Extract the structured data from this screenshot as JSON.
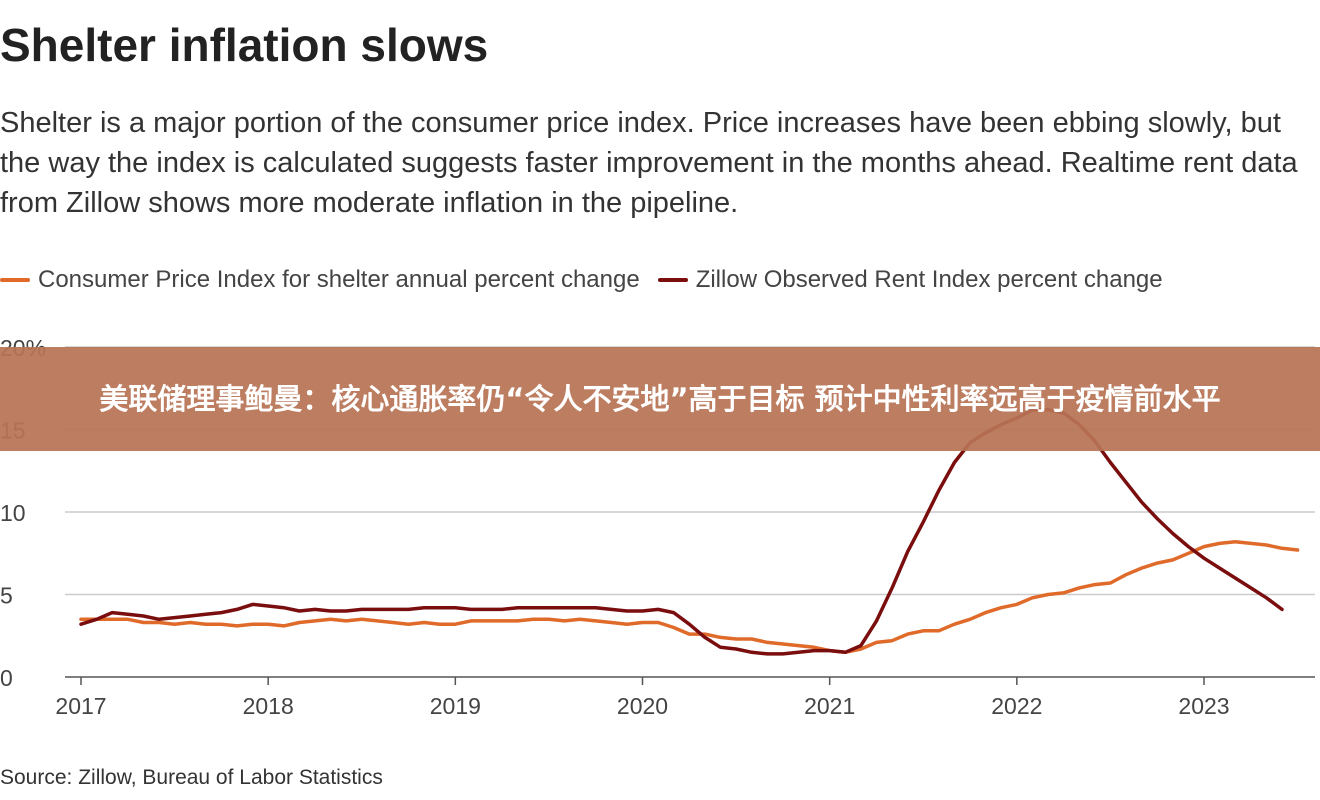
{
  "banner": {
    "text": "美联储理事鲍曼：核心通胀率仍“令人不安地”高于目标 预计中性利率远高于疫情前水平"
  },
  "colors": {
    "cpi": "#e06a2a",
    "zillow": "#7a0e0e",
    "grid": "#cccccc",
    "axis": "#555555",
    "banner_bg": "#b77354"
  },
  "source": "Source: Zillow, Bureau of Labor Statistics",
  "chart_data": {
    "type": "line",
    "title": "Shelter inflation slows",
    "subtitle": "Shelter is a major portion of the consumer price index. Price increases have been ebbing slowly, but the way the index is calculated suggests faster improvement in the months ahead. Realtime rent data from Zillow shows more moderate inflation in the pipeline.",
    "xlabel": "",
    "ylabel": "",
    "x_ticks": [
      "2017",
      "2018",
      "2019",
      "2020",
      "2021",
      "2022",
      "2023"
    ],
    "y_ticks": [
      "0",
      "5",
      "10",
      "15",
      "20%"
    ],
    "ylim": [
      0,
      20
    ],
    "xlim": [
      "2017-01",
      "2023-07"
    ],
    "grid": true,
    "legend_position": "top-left",
    "series": [
      {
        "name": "Consumer Price Index for shelter annual percent change",
        "color_key": "cpi",
        "points": [
          [
            "2017-01",
            3.5
          ],
          [
            "2017-02",
            3.5
          ],
          [
            "2017-03",
            3.5
          ],
          [
            "2017-04",
            3.5
          ],
          [
            "2017-05",
            3.3
          ],
          [
            "2017-06",
            3.3
          ],
          [
            "2017-07",
            3.2
          ],
          [
            "2017-08",
            3.3
          ],
          [
            "2017-09",
            3.2
          ],
          [
            "2017-10",
            3.2
          ],
          [
            "2017-11",
            3.1
          ],
          [
            "2017-12",
            3.2
          ],
          [
            "2018-01",
            3.2
          ],
          [
            "2018-02",
            3.1
          ],
          [
            "2018-03",
            3.3
          ],
          [
            "2018-04",
            3.4
          ],
          [
            "2018-05",
            3.5
          ],
          [
            "2018-06",
            3.4
          ],
          [
            "2018-07",
            3.5
          ],
          [
            "2018-08",
            3.4
          ],
          [
            "2018-09",
            3.3
          ],
          [
            "2018-10",
            3.2
          ],
          [
            "2018-11",
            3.3
          ],
          [
            "2018-12",
            3.2
          ],
          [
            "2019-01",
            3.2
          ],
          [
            "2019-02",
            3.4
          ],
          [
            "2019-03",
            3.4
          ],
          [
            "2019-04",
            3.4
          ],
          [
            "2019-05",
            3.4
          ],
          [
            "2019-06",
            3.5
          ],
          [
            "2019-07",
            3.5
          ],
          [
            "2019-08",
            3.4
          ],
          [
            "2019-09",
            3.5
          ],
          [
            "2019-10",
            3.4
          ],
          [
            "2019-11",
            3.3
          ],
          [
            "2019-12",
            3.2
          ],
          [
            "2020-01",
            3.3
          ],
          [
            "2020-02",
            3.3
          ],
          [
            "2020-03",
            3.0
          ],
          [
            "2020-04",
            2.6
          ],
          [
            "2020-05",
            2.6
          ],
          [
            "2020-06",
            2.4
          ],
          [
            "2020-07",
            2.3
          ],
          [
            "2020-08",
            2.3
          ],
          [
            "2020-09",
            2.1
          ],
          [
            "2020-10",
            2.0
          ],
          [
            "2020-11",
            1.9
          ],
          [
            "2020-12",
            1.8
          ],
          [
            "2021-01",
            1.6
          ],
          [
            "2021-02",
            1.5
          ],
          [
            "2021-03",
            1.7
          ],
          [
            "2021-04",
            2.1
          ],
          [
            "2021-05",
            2.2
          ],
          [
            "2021-06",
            2.6
          ],
          [
            "2021-07",
            2.8
          ],
          [
            "2021-08",
            2.8
          ],
          [
            "2021-09",
            3.2
          ],
          [
            "2021-10",
            3.5
          ],
          [
            "2021-11",
            3.9
          ],
          [
            "2021-12",
            4.2
          ],
          [
            "2022-01",
            4.4
          ],
          [
            "2022-02",
            4.8
          ],
          [
            "2022-03",
            5.0
          ],
          [
            "2022-04",
            5.1
          ],
          [
            "2022-05",
            5.4
          ],
          [
            "2022-06",
            5.6
          ],
          [
            "2022-07",
            5.7
          ],
          [
            "2022-08",
            6.2
          ],
          [
            "2022-09",
            6.6
          ],
          [
            "2022-10",
            6.9
          ],
          [
            "2022-11",
            7.1
          ],
          [
            "2022-12",
            7.5
          ],
          [
            "2023-01",
            7.9
          ],
          [
            "2023-02",
            8.1
          ],
          [
            "2023-03",
            8.2
          ],
          [
            "2023-04",
            8.1
          ],
          [
            "2023-05",
            8.0
          ],
          [
            "2023-06",
            7.8
          ],
          [
            "2023-07",
            7.7
          ]
        ]
      },
      {
        "name": "Zillow Observed Rent Index percent change",
        "color_key": "zillow",
        "points": [
          [
            "2017-01",
            3.2
          ],
          [
            "2017-02",
            3.5
          ],
          [
            "2017-03",
            3.9
          ],
          [
            "2017-04",
            3.8
          ],
          [
            "2017-05",
            3.7
          ],
          [
            "2017-06",
            3.5
          ],
          [
            "2017-07",
            3.6
          ],
          [
            "2017-08",
            3.7
          ],
          [
            "2017-09",
            3.8
          ],
          [
            "2017-10",
            3.9
          ],
          [
            "2017-11",
            4.1
          ],
          [
            "2017-12",
            4.4
          ],
          [
            "2018-01",
            4.3
          ],
          [
            "2018-02",
            4.2
          ],
          [
            "2018-03",
            4.0
          ],
          [
            "2018-04",
            4.1
          ],
          [
            "2018-05",
            4.0
          ],
          [
            "2018-06",
            4.0
          ],
          [
            "2018-07",
            4.1
          ],
          [
            "2018-08",
            4.1
          ],
          [
            "2018-09",
            4.1
          ],
          [
            "2018-10",
            4.1
          ],
          [
            "2018-11",
            4.2
          ],
          [
            "2018-12",
            4.2
          ],
          [
            "2019-01",
            4.2
          ],
          [
            "2019-02",
            4.1
          ],
          [
            "2019-03",
            4.1
          ],
          [
            "2019-04",
            4.1
          ],
          [
            "2019-05",
            4.2
          ],
          [
            "2019-06",
            4.2
          ],
          [
            "2019-07",
            4.2
          ],
          [
            "2019-08",
            4.2
          ],
          [
            "2019-09",
            4.2
          ],
          [
            "2019-10",
            4.2
          ],
          [
            "2019-11",
            4.1
          ],
          [
            "2019-12",
            4.0
          ],
          [
            "2020-01",
            4.0
          ],
          [
            "2020-02",
            4.1
          ],
          [
            "2020-03",
            3.9
          ],
          [
            "2020-04",
            3.2
          ],
          [
            "2020-05",
            2.4
          ],
          [
            "2020-06",
            1.8
          ],
          [
            "2020-07",
            1.7
          ],
          [
            "2020-08",
            1.5
          ],
          [
            "2020-09",
            1.4
          ],
          [
            "2020-10",
            1.4
          ],
          [
            "2020-11",
            1.5
          ],
          [
            "2020-12",
            1.6
          ],
          [
            "2021-01",
            1.6
          ],
          [
            "2021-02",
            1.5
          ],
          [
            "2021-03",
            1.9
          ],
          [
            "2021-04",
            3.4
          ],
          [
            "2021-05",
            5.4
          ],
          [
            "2021-06",
            7.6
          ],
          [
            "2021-07",
            9.4
          ],
          [
            "2021-08",
            11.3
          ],
          [
            "2021-09",
            13.0
          ],
          [
            "2021-10",
            14.2
          ],
          [
            "2021-11",
            14.8
          ],
          [
            "2021-12",
            15.3
          ],
          [
            "2022-01",
            15.7
          ],
          [
            "2022-02",
            16.2
          ],
          [
            "2022-03",
            16.2
          ],
          [
            "2022-04",
            16.0
          ],
          [
            "2022-05",
            15.3
          ],
          [
            "2022-06",
            14.3
          ],
          [
            "2022-07",
            13.0
          ],
          [
            "2022-08",
            11.8
          ],
          [
            "2022-09",
            10.6
          ],
          [
            "2022-10",
            9.6
          ],
          [
            "2022-11",
            8.7
          ],
          [
            "2022-12",
            7.9
          ],
          [
            "2023-01",
            7.2
          ],
          [
            "2023-02",
            6.6
          ],
          [
            "2023-03",
            6.0
          ],
          [
            "2023-04",
            5.4
          ],
          [
            "2023-05",
            4.8
          ],
          [
            "2023-06",
            4.1
          ]
        ]
      }
    ]
  }
}
